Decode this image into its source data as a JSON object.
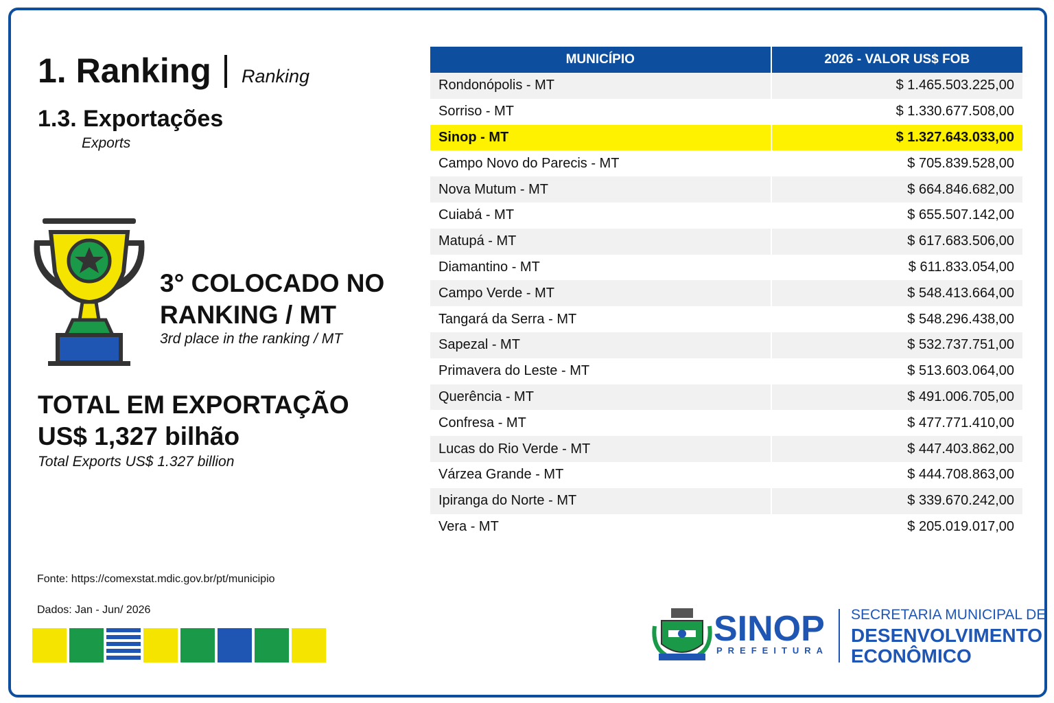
{
  "header": {
    "title": "1. Ranking",
    "subtitle": "Ranking"
  },
  "section": {
    "title": "1.3. Exportações",
    "subtitle": "Exports"
  },
  "rank": {
    "line1": "3° COLOCADO NO",
    "line2": "RANKING / MT",
    "caption": "3rd place in the ranking / MT"
  },
  "total": {
    "line1": "TOTAL EM EXPORTAÇÃO",
    "line2": "US$ 1,327 bilhão",
    "caption": "Total Exports US$ 1.327 billion"
  },
  "footer": {
    "source": "Fonte: https://comexstat.mdic.gov.br/pt/municipio",
    "period": "Dados: Jan - Jun/ 2026"
  },
  "logo": {
    "name": "SINOP",
    "tagline": "PREFEITURA",
    "dept1": "SECRETARIA MUNICIPAL DE",
    "dept2": "DESENVOLVIMENTO",
    "dept3": "ECONÔMICO"
  },
  "table": {
    "headers": [
      "MUNICÍPIO",
      "2026 - VALOR US$ FOB"
    ],
    "highlight_index": 2,
    "rows": [
      [
        "Rondonópolis - MT",
        "$ 1.465.503.225,00"
      ],
      [
        "Sorriso - MT",
        "$ 1.330.677.508,00"
      ],
      [
        "Sinop - MT",
        "$ 1.327.643.033,00"
      ],
      [
        "Campo Novo do Parecis - MT",
        "$ 705.839.528,00"
      ],
      [
        "Nova Mutum - MT",
        "$ 664.846.682,00"
      ],
      [
        "Cuiabá - MT",
        "$ 655.507.142,00"
      ],
      [
        "Matupá - MT",
        "$ 617.683.506,00"
      ],
      [
        "Diamantino - MT",
        "$ 611.833.054,00"
      ],
      [
        "Campo Verde - MT",
        "$ 548.413.664,00"
      ],
      [
        "Tangará da Serra - MT",
        "$ 548.296.438,00"
      ],
      [
        "Sapezal - MT",
        "$ 532.737.751,00"
      ],
      [
        "Primavera do Leste - MT",
        "$ 513.603.064,00"
      ],
      [
        "Querência - MT",
        "$ 491.006.705,00"
      ],
      [
        "Confresa - MT",
        "$ 477.771.410,00"
      ],
      [
        "Lucas do Rio Verde - MT",
        "$ 447.403.862,00"
      ],
      [
        "Várzea Grande - MT",
        "$ 444.708.863,00"
      ],
      [
        "Ipiranga do Norte - MT",
        "$ 339.670.242,00"
      ],
      [
        "Vera - MT",
        "$ 205.019.017,00"
      ]
    ]
  }
}
